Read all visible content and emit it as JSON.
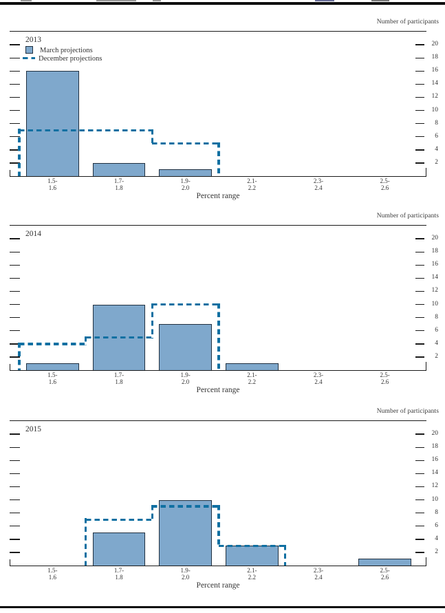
{
  "figure": {
    "right_axis_label": "Number of participants",
    "x_axis_label": "Percent range"
  },
  "legend": {
    "march_label": "March projections",
    "december_label": "December projections"
  },
  "colors": {
    "bar_fill": "#7fa8cc",
    "bar_border": "#203040",
    "december_dash": "#1070a2",
    "axis_line": "#1a1a1a"
  },
  "chart_data": [
    {
      "type": "bar",
      "title": "2013",
      "categories": [
        [
          "1.5-",
          "1.6"
        ],
        [
          "1.7-",
          "1.8"
        ],
        [
          "1.9-",
          "2.0"
        ],
        [
          "2.1-",
          "2.2"
        ],
        [
          "2.3-",
          "2.4"
        ],
        [
          "2.5-",
          "2.6"
        ]
      ],
      "series": [
        {
          "name": "March projections",
          "type": "bar",
          "values": [
            16,
            2,
            1,
            0,
            0,
            0
          ]
        },
        {
          "name": "December projections",
          "type": "step-outline",
          "values": [
            7,
            7,
            5,
            0,
            0,
            0
          ]
        }
      ],
      "xlabel": "Percent range",
      "ylabel": "Number of participants",
      "ylim": [
        0,
        22
      ],
      "yticks": [
        2,
        4,
        6,
        8,
        10,
        12,
        14,
        16,
        18,
        20
      ],
      "legend_position": "top-left",
      "grid": false
    },
    {
      "type": "bar",
      "title": "2014",
      "categories": [
        [
          "1.5-",
          "1.6"
        ],
        [
          "1.7-",
          "1.8"
        ],
        [
          "1.9-",
          "2.0"
        ],
        [
          "2.1-",
          "2.2"
        ],
        [
          "2.3-",
          "2.4"
        ],
        [
          "2.5-",
          "2.6"
        ]
      ],
      "series": [
        {
          "name": "March projections",
          "type": "bar",
          "values": [
            1,
            10,
            7,
            1,
            0,
            0
          ]
        },
        {
          "name": "December projections",
          "type": "step-outline",
          "values": [
            4,
            5,
            10,
            0,
            0,
            0
          ]
        }
      ],
      "xlabel": "Percent range",
      "ylabel": "Number of participants",
      "ylim": [
        0,
        22
      ],
      "yticks": [
        2,
        4,
        6,
        8,
        10,
        12,
        14,
        16,
        18,
        20
      ],
      "legend_position": "none",
      "grid": false
    },
    {
      "type": "bar",
      "title": "2015",
      "categories": [
        [
          "1.5-",
          "1.6"
        ],
        [
          "1.7-",
          "1.8"
        ],
        [
          "1.9-",
          "2.0"
        ],
        [
          "2.1-",
          "2.2"
        ],
        [
          "2.3-",
          "2.4"
        ],
        [
          "2.5-",
          "2.6"
        ]
      ],
      "series": [
        {
          "name": "March projections",
          "type": "bar",
          "values": [
            0,
            5,
            10,
            3,
            0,
            1
          ]
        },
        {
          "name": "December projections",
          "type": "step-outline",
          "values": [
            0,
            7,
            9,
            3,
            0,
            0
          ]
        }
      ],
      "xlabel": "Percent range",
      "ylabel": "Number of participants",
      "ylim": [
        0,
        22
      ],
      "yticks": [
        2,
        4,
        6,
        8,
        10,
        12,
        14,
        16,
        18,
        20
      ],
      "legend_position": "none",
      "grid": false
    }
  ]
}
